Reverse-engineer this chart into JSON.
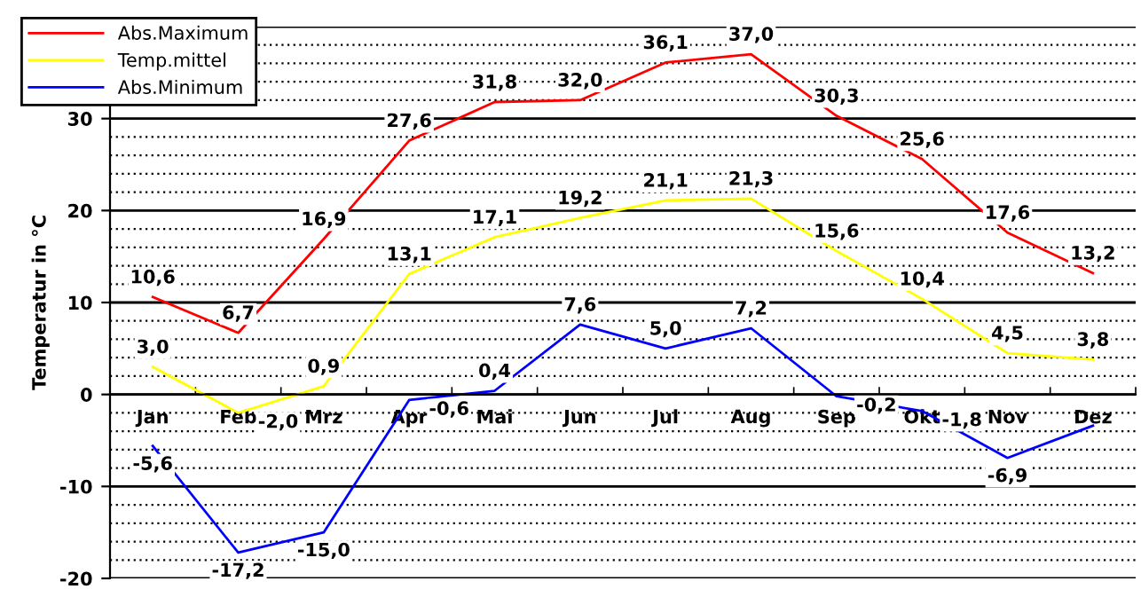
{
  "chart_data": {
    "type": "line",
    "ylabel": "Temperatur in °C",
    "categories": [
      "Jan",
      "Feb",
      "Mrz",
      "Apr",
      "Mai",
      "Jun",
      "Jul",
      "Aug",
      "Sep",
      "Okt",
      "Nov",
      "Dez"
    ],
    "series": [
      {
        "name": "Abs.Maximum",
        "color": "#ff0000",
        "values": [
          10.6,
          6.7,
          16.9,
          27.6,
          31.8,
          32.0,
          36.1,
          37.0,
          30.3,
          25.6,
          17.6,
          13.2
        ],
        "value_labels": [
          "10,6",
          "6,7",
          "16,9",
          "27,6",
          "31,8",
          "32,0",
          "36,1",
          "37,0",
          "30,3",
          "25,6",
          "17,6",
          "13,2"
        ]
      },
      {
        "name": "Temp.mittel",
        "color": "#ffff00",
        "values": [
          3.0,
          -2.0,
          0.9,
          13.1,
          17.1,
          19.2,
          21.1,
          21.3,
          15.6,
          10.4,
          4.5,
          3.8
        ],
        "value_labels": [
          "3,0",
          "-2,0",
          "0,9",
          "13,1",
          "17,1",
          "19,2",
          "21,1",
          "21,3",
          "15,6",
          "10,4",
          "4,5",
          "3,8"
        ]
      },
      {
        "name": "Abs.Minimum",
        "color": "#0000ff",
        "values": [
          -5.6,
          -17.2,
          -15.0,
          -0.6,
          0.4,
          7.6,
          5.0,
          7.2,
          -0.2,
          -1.8,
          -6.9,
          -3.4
        ],
        "value_labels": [
          "-5,6",
          "-17,2",
          "-15,0",
          "-0,6",
          "0,4",
          "7,6",
          "5,0",
          "7,2",
          "-0,2",
          "-1,8",
          "-6,9",
          null
        ]
      }
    ],
    "ylim": [
      -20,
      40
    ],
    "yticks": [
      -20,
      -10,
      0,
      10,
      20,
      30,
      {
        "value": 40,
        "label": null
      }
    ],
    "grid": "y",
    "legend": "top left",
    "marker": "none",
    "line_style": "solid"
  }
}
